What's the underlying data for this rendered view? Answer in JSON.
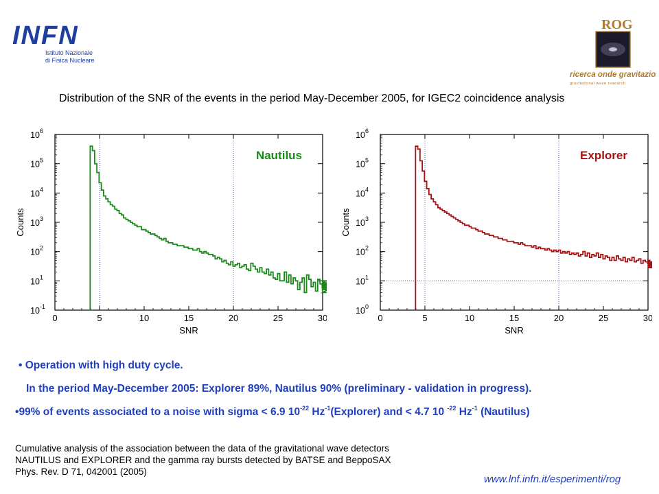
{
  "logos": {
    "infn": {
      "wordmark": "INFN",
      "subtitle_line1": "Istituto Nazionale",
      "subtitle_line2": "di Fisica Nucleare"
    },
    "rog": {
      "wordmark": "ROG",
      "subtitle_line1": "ricerca onde gravitazionali",
      "subtitle_line2": "gravitational wave research"
    }
  },
  "heading": "Distribution of the SNR of the events in the period May-December 2005, for IGEC2 coincidence analysis",
  "bullets": {
    "b1": "Operation with high duty cycle.",
    "b2": "In the period May-December 2005: Explorer 89%, Nautilus 90% (preliminary - validation in progress).",
    "b3_p1": "99% of events associated to a noise with sigma < 6.9 10",
    "b3_exp1": "-22",
    "b3_p2": " Hz",
    "b3_exp2": "-1",
    "b3_p3": "(Explorer) and < 4.7 10 ",
    "b3_exp3": "-22",
    "b3_p4": " Hz",
    "b3_exp4": "-1",
    "b3_p5": " (Nautilus)"
  },
  "reference": {
    "line1": "Cumulative analysis of the association between the data of the gravitational wave detectors",
    "line2": "NAUTILUS and EXPLORER and the gamma ray bursts detected by BATSE and BeppoSAX",
    "line3": "Phys. Rev. D 71, 042001 (2005)"
  },
  "website": "www.lnf.infn.it/esperimenti/rog",
  "chart_data": [
    {
      "type": "line",
      "id": "nautilus",
      "legend": "Nautilus",
      "color": "#1a8a1a",
      "xlabel": "SNR",
      "ylabel": "Counts",
      "xlim": [
        0,
        30
      ],
      "ylim_log10": [
        0,
        6
      ],
      "y_scale": "log",
      "xticks": [
        "0",
        "5",
        "10",
        "15",
        "20",
        "25",
        "30"
      ],
      "yticks_exp": [
        "0",
        "1",
        "2",
        "3",
        "4",
        "5",
        "6"
      ],
      "ytick_base": "10",
      "ytick_min_exp": "-1",
      "vlines": [
        5,
        20
      ],
      "hline_log10": null,
      "histogram": {
        "x_start": 3.95,
        "bin_width": 0.25,
        "log10_counts": [
          5.6,
          5.45,
          5.0,
          4.7,
          4.35,
          4.1,
          3.9,
          3.8,
          3.7,
          3.6,
          3.55,
          3.45,
          3.4,
          3.3,
          3.25,
          3.15,
          3.1,
          3.05,
          3.0,
          2.95,
          2.9,
          2.85,
          2.85,
          2.75,
          2.75,
          2.7,
          2.65,
          2.6,
          2.6,
          2.55,
          2.5,
          2.45,
          2.4,
          2.45,
          2.35,
          2.3,
          2.3,
          2.25,
          2.25,
          2.2,
          2.2,
          2.2,
          2.15,
          2.15,
          2.1,
          2.1,
          2.05,
          2.05,
          2.1,
          2.0,
          1.95,
          2.0,
          1.95,
          1.9,
          1.9,
          1.85,
          1.75,
          1.8,
          1.75,
          1.65,
          1.7,
          1.6,
          1.55,
          1.65,
          1.5,
          1.55,
          1.6,
          1.45,
          1.5,
          1.55,
          1.4,
          1.35,
          1.6,
          1.5,
          1.4,
          1.3,
          1.45,
          1.3,
          1.25,
          1.4,
          1.2,
          1.3,
          1.1,
          1.05,
          1.25,
          1.0,
          1.0,
          1.3,
          0.95,
          1.2,
          0.9,
          1.1,
          1.0,
          0.7,
          0.95,
          1.1,
          0.6,
          1.2,
          1.05,
          0.8,
          0.95,
          0.65,
          1.05,
          0.9,
          0.75,
          1.0,
          0.85,
          0.7,
          1.0,
          0.8,
          0.6,
          0.9,
          0.75,
          0.85,
          0.7,
          0.9
        ]
      }
    },
    {
      "type": "line",
      "id": "explorer",
      "legend": "Explorer",
      "color": "#a81212",
      "xlabel": "SNR",
      "ylabel": "Counts",
      "xlim": [
        0,
        30
      ],
      "ylim_log10": [
        0,
        6
      ],
      "y_scale": "log",
      "xticks": [
        "0",
        "5",
        "10",
        "15",
        "20",
        "25",
        "30"
      ],
      "yticks_exp": [
        "0",
        "1",
        "2",
        "3",
        "4",
        "5",
        "6"
      ],
      "ytick_base": "10",
      "ytick_min_exp": "0",
      "vlines": [
        5,
        20
      ],
      "hline_log10": 1,
      "histogram": {
        "x_start": 3.95,
        "bin_width": 0.25,
        "log10_counts": [
          5.6,
          5.5,
          5.1,
          4.75,
          4.4,
          4.15,
          3.95,
          3.8,
          3.7,
          3.6,
          3.5,
          3.45,
          3.4,
          3.35,
          3.3,
          3.25,
          3.2,
          3.15,
          3.1,
          3.05,
          3.0,
          2.95,
          2.9,
          2.9,
          2.85,
          2.8,
          2.8,
          2.75,
          2.7,
          2.7,
          2.65,
          2.6,
          2.6,
          2.55,
          2.55,
          2.5,
          2.5,
          2.45,
          2.45,
          2.4,
          2.4,
          2.35,
          2.35,
          2.35,
          2.3,
          2.3,
          2.25,
          2.3,
          2.25,
          2.2,
          2.2,
          2.2,
          2.15,
          2.2,
          2.1,
          2.15,
          2.1,
          2.1,
          2.05,
          2.1,
          2.05,
          2.0,
          2.05,
          2.0,
          2.05,
          1.95,
          2.0,
          1.95,
          2.0,
          1.9,
          1.95,
          1.9,
          1.95,
          1.85,
          1.9,
          2.0,
          1.85,
          1.95,
          1.8,
          1.9,
          1.85,
          1.95,
          1.8,
          1.9,
          1.75,
          1.85,
          1.8,
          1.7,
          1.8,
          1.7,
          1.85,
          1.75,
          1.7,
          1.8,
          1.65,
          1.75,
          1.7,
          1.8,
          1.65,
          1.7,
          1.75,
          1.6,
          1.7,
          1.65,
          1.6,
          1.7,
          1.55,
          1.65,
          1.6,
          1.5,
          1.65,
          1.55,
          1.5,
          1.6,
          1.45,
          1.6
        ]
      }
    }
  ]
}
